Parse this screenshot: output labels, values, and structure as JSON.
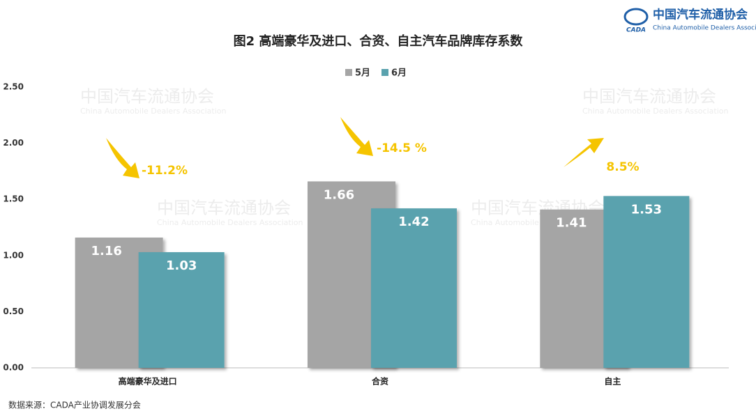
{
  "logo": {
    "name": "中国汽车流通协会",
    "english": "China Automobile Dealers Association",
    "mark": "CADA"
  },
  "chart_data": {
    "type": "bar",
    "title": "图2  高端豪华及进口、合资、自主汽车品牌库存系数",
    "categories": [
      "高端豪华及进口",
      "合资",
      "自主"
    ],
    "series": [
      {
        "name": "5月",
        "color": "#a5a5a5",
        "values": [
          1.16,
          1.66,
          1.41
        ]
      },
      {
        "name": "6月",
        "color": "#5aa2ae",
        "values": [
          1.03,
          1.42,
          1.53
        ]
      }
    ],
    "ylim": [
      0,
      2.5
    ],
    "yticks": [
      {
        "value": 0,
        "label": "0.00"
      },
      {
        "value": 0.5,
        "label": "0.50"
      },
      {
        "value": 1,
        "label": "1.00"
      },
      {
        "value": 1.5,
        "label": "1.50"
      },
      {
        "value": 2,
        "label": "2.00"
      },
      {
        "value": 2.5,
        "label": "2.50"
      }
    ],
    "annotations": [
      "-11.2%",
      "-14.5 %",
      "8.5%"
    ],
    "legend": "top",
    "source": "数据来源：CADA产业协调发展分会"
  }
}
